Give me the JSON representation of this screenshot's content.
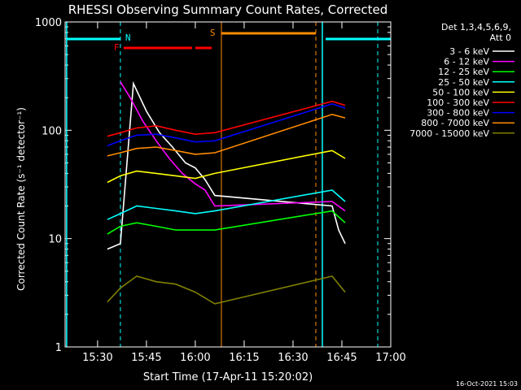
{
  "chart_data": {
    "type": "line",
    "title": "RHESSI Observing Summary Count Rates, Corrected",
    "xlabel": "Start Time (17-Apr-11 15:20:02)",
    "ylabel": "Corrected Count Rate (s⁻¹ detector⁻¹)",
    "y_scale": "log",
    "ylim": [
      1,
      1000
    ],
    "xlim": [
      "15:20:02",
      "17:00:00"
    ],
    "x_ticks": [
      "15:30",
      "15:45",
      "16:00",
      "16:15",
      "16:30",
      "16:45",
      "17:00"
    ],
    "y_ticks": [
      "1",
      "10",
      "100",
      "1000"
    ],
    "legend_title": [
      "Det 1,3,4,5,6,9,",
      "Att 0"
    ],
    "legend_position": "right",
    "timestamp": "16-Oct-2021 15:03",
    "flags": [
      {
        "label": "N",
        "color": "#00ffff"
      },
      {
        "label": "F",
        "color": "#ff0000"
      },
      {
        "label": "S",
        "color": "#ff8c00"
      }
    ],
    "series": [
      {
        "name": "3 - 6 keV",
        "color": "#ffffff",
        "x": [
          "15:33",
          "15:37",
          "15:41",
          "15:45",
          "15:49",
          "15:53",
          "15:57",
          "16:00",
          "16:03",
          "16:06",
          "16:42",
          "16:44",
          "16:46"
        ],
        "values": [
          8,
          9,
          270,
          150,
          95,
          70,
          50,
          45,
          35,
          25,
          20,
          12,
          9
        ]
      },
      {
        "name": "6 - 12 keV",
        "color": "#ff00ff",
        "x": [
          "15:37",
          "15:40",
          "15:44",
          "15:48",
          "15:52",
          "15:56",
          "16:00",
          "16:03",
          "16:06",
          "16:42",
          "16:46"
        ],
        "values": [
          280,
          200,
          120,
          80,
          55,
          40,
          32,
          28,
          20,
          22,
          18
        ]
      },
      {
        "name": "12 - 25 keV",
        "color": "#00ff00",
        "x": [
          "15:33",
          "15:37",
          "15:42",
          "15:48",
          "15:54",
          "16:00",
          "16:06",
          "16:42",
          "16:46"
        ],
        "values": [
          11,
          13,
          14,
          13,
          12,
          12,
          12,
          18,
          14
        ]
      },
      {
        "name": "25 - 50 keV",
        "color": "#00ffff",
        "x": [
          "15:33",
          "15:37",
          "15:42",
          "15:48",
          "15:54",
          "16:00",
          "16:06",
          "16:42",
          "16:46"
        ],
        "values": [
          15,
          17,
          20,
          19,
          18,
          17,
          18,
          28,
          22
        ]
      },
      {
        "name": "50 - 100 keV",
        "color": "#ffff00",
        "x": [
          "15:33",
          "15:37",
          "15:42",
          "15:48",
          "15:54",
          "16:00",
          "16:06",
          "16:42",
          "16:46"
        ],
        "values": [
          33,
          38,
          42,
          40,
          38,
          36,
          40,
          65,
          55
        ]
      },
      {
        "name": "100 - 300 keV",
        "color": "#ff0000",
        "x": [
          "15:33",
          "15:37",
          "15:42",
          "15:48",
          "15:54",
          "16:00",
          "16:06",
          "16:42",
          "16:46"
        ],
        "values": [
          88,
          95,
          105,
          110,
          100,
          92,
          95,
          185,
          170
        ]
      },
      {
        "name": "300 - 800 keV",
        "color": "#0000ff",
        "x": [
          "15:33",
          "15:37",
          "15:42",
          "15:48",
          "15:54",
          "16:00",
          "16:06",
          "16:42",
          "16:46"
        ],
        "values": [
          72,
          80,
          90,
          92,
          85,
          78,
          80,
          175,
          160
        ]
      },
      {
        "name": "800 - 7000 keV",
        "color": "#ff8c00",
        "x": [
          "15:33",
          "15:37",
          "15:42",
          "15:48",
          "15:54",
          "16:00",
          "16:06",
          "16:42",
          "16:46"
        ],
        "values": [
          58,
          62,
          68,
          70,
          65,
          60,
          62,
          140,
          130
        ]
      },
      {
        "name": "7000 - 15000 keV",
        "color": "#808000",
        "x": [
          "15:33",
          "15:37",
          "15:42",
          "15:48",
          "15:54",
          "16:00",
          "16:06",
          "16:42",
          "16:46"
        ],
        "values": [
          2.6,
          3.5,
          4.5,
          4.0,
          3.8,
          3.2,
          2.5,
          4.5,
          3.2
        ]
      }
    ]
  }
}
